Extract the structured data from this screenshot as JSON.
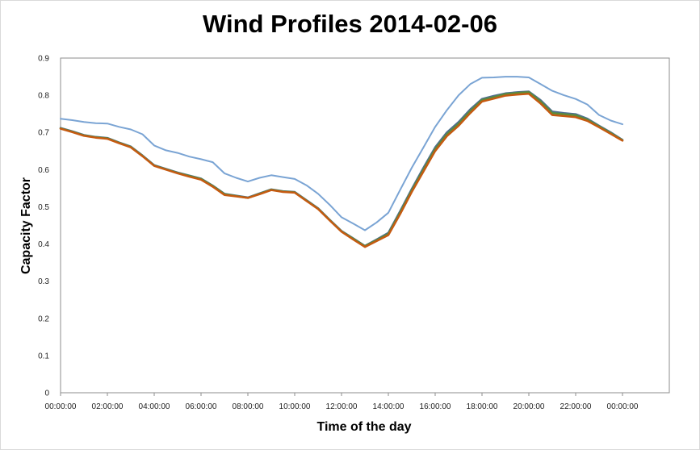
{
  "chart_data": {
    "type": "line",
    "title": "Wind Profiles 2014-02-06",
    "xlabel": "Time of the day",
    "ylabel": "Capacity Factor",
    "ylim": [
      0,
      0.9
    ],
    "xlim_hours": [
      0,
      26
    ],
    "y_ticks": [
      "0",
      "0.1",
      "0.2",
      "0.3",
      "0.4",
      "0.5",
      "0.6",
      "0.7",
      "0.8",
      "0.9"
    ],
    "x_ticks": [
      "00:00:00",
      "02:00:00",
      "04:00:00",
      "06:00:00",
      "08:00:00",
      "10:00:00",
      "12:00:00",
      "14:00:00",
      "16:00:00",
      "18:00:00",
      "20:00:00",
      "22:00:00",
      "00:00:00"
    ],
    "grid": false,
    "legend": "none",
    "x": [
      "00:00:00",
      "00:30:00",
      "01:00:00",
      "01:30:00",
      "02:00:00",
      "02:30:00",
      "03:00:00",
      "03:30:00",
      "04:00:00",
      "04:30:00",
      "05:00:00",
      "05:30:00",
      "06:00:00",
      "06:30:00",
      "07:00:00",
      "07:30:00",
      "08:00:00",
      "08:30:00",
      "09:00:00",
      "09:30:00",
      "10:00:00",
      "10:30:00",
      "11:00:00",
      "11:30:00",
      "12:00:00",
      "12:30:00",
      "13:00:00",
      "13:30:00",
      "14:00:00",
      "14:30:00",
      "15:00:00",
      "15:30:00",
      "16:00:00",
      "16:30:00",
      "17:00:00",
      "17:30:00",
      "18:00:00",
      "18:30:00",
      "19:00:00",
      "19:30:00",
      "20:00:00",
      "20:30:00",
      "21:00:00",
      "21:30:00",
      "22:00:00",
      "22:30:00",
      "23:00:00",
      "23:30:00",
      "00:00:00"
    ],
    "series": [
      {
        "color": "#7aa4d4",
        "values": [
          0.737,
          0.733,
          0.728,
          0.725,
          0.724,
          0.715,
          0.708,
          0.695,
          0.665,
          0.652,
          0.645,
          0.635,
          0.628,
          0.62,
          0.59,
          0.578,
          0.568,
          0.578,
          0.585,
          0.58,
          0.575,
          0.558,
          0.535,
          0.505,
          0.472,
          0.455,
          0.437,
          0.458,
          0.484,
          0.545,
          0.605,
          0.66,
          0.715,
          0.76,
          0.8,
          0.83,
          0.847,
          0.848,
          0.85,
          0.85,
          0.848,
          0.83,
          0.812,
          0.8,
          0.79,
          0.775,
          0.747,
          0.732,
          0.722
        ]
      },
      {
        "color": "#4f6f8f",
        "values": [
          0.712,
          0.703,
          0.693,
          0.688,
          0.685,
          0.673,
          0.662,
          0.638,
          0.612,
          0.602,
          0.592,
          0.584,
          0.576,
          0.557,
          0.535,
          0.53,
          0.525,
          0.536,
          0.547,
          0.542,
          0.54,
          0.518,
          0.496,
          0.465,
          0.435,
          0.415,
          0.395,
          0.412,
          0.43,
          0.488,
          0.548,
          0.605,
          0.66,
          0.7,
          0.728,
          0.762,
          0.79,
          0.798,
          0.805,
          0.808,
          0.81,
          0.787,
          0.756,
          0.752,
          0.749,
          0.737,
          0.718,
          0.7,
          0.68
        ]
      },
      {
        "color": "#5b8c3a",
        "values": [
          0.711,
          0.702,
          0.692,
          0.687,
          0.684,
          0.672,
          0.661,
          0.637,
          0.611,
          0.601,
          0.591,
          0.583,
          0.575,
          0.556,
          0.534,
          0.529,
          0.524,
          0.535,
          0.546,
          0.541,
          0.539,
          0.517,
          0.495,
          0.464,
          0.434,
          0.414,
          0.394,
          0.41,
          0.427,
          0.484,
          0.544,
          0.6,
          0.655,
          0.695,
          0.723,
          0.757,
          0.787,
          0.795,
          0.803,
          0.806,
          0.808,
          0.783,
          0.752,
          0.749,
          0.746,
          0.734,
          0.716,
          0.698,
          0.679
        ]
      },
      {
        "color": "#c55a11",
        "values": [
          0.71,
          0.701,
          0.691,
          0.686,
          0.683,
          0.671,
          0.66,
          0.636,
          0.61,
          0.6,
          0.59,
          0.581,
          0.573,
          0.554,
          0.532,
          0.528,
          0.524,
          0.534,
          0.545,
          0.54,
          0.538,
          0.516,
          0.494,
          0.463,
          0.433,
          0.412,
          0.392,
          0.408,
          0.424,
          0.48,
          0.54,
          0.595,
          0.65,
          0.69,
          0.718,
          0.752,
          0.783,
          0.791,
          0.799,
          0.802,
          0.804,
          0.778,
          0.747,
          0.744,
          0.741,
          0.731,
          0.714,
          0.696,
          0.678
        ]
      }
    ]
  }
}
